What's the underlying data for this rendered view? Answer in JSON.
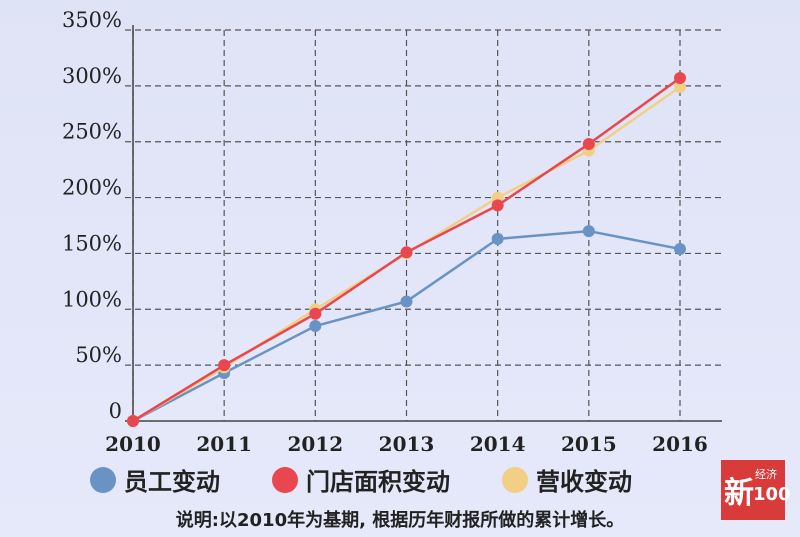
{
  "chart_data": {
    "type": "line",
    "title": "",
    "xlabel": "",
    "ylabel": "",
    "x": [
      "2010",
      "2011",
      "2012",
      "2013",
      "2014",
      "2015",
      "2016"
    ],
    "ylim": [
      0,
      350
    ],
    "yticks": [
      0,
      50,
      100,
      150,
      200,
      250,
      300,
      350
    ],
    "ytick_labels": [
      "0",
      "50%",
      "100%",
      "150%",
      "200%",
      "250%",
      "300%",
      "350%"
    ],
    "grid": true,
    "series": [
      {
        "name": "员工变动",
        "color": "#6a93c5",
        "values": [
          0,
          43,
          85,
          107,
          163,
          170,
          154
        ]
      },
      {
        "name": "门店面积变动",
        "color": "#e8474f",
        "values": [
          0,
          50,
          96,
          151,
          193,
          248,
          307
        ]
      },
      {
        "name": "营收变动",
        "color": "#f3cf85",
        "values": [
          0,
          48,
          100,
          150,
          200,
          242,
          299
        ]
      }
    ]
  },
  "note": "说明:以2010年为基期, 根据历年财报所做的累计增长。",
  "logo": {
    "main": "新",
    "small": "经济",
    "num": "100"
  }
}
